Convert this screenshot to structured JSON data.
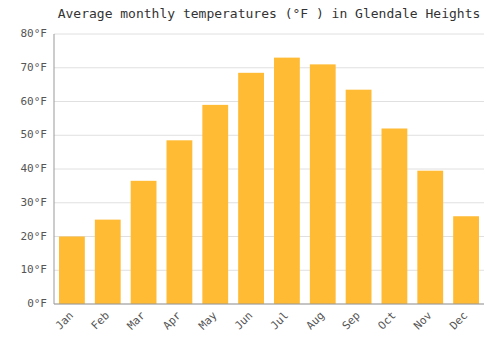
{
  "chart_data": {
    "type": "bar",
    "title": "Average monthly temperatures (°F ) in Glendale Heights",
    "categories": [
      "Jan",
      "Feb",
      "Mar",
      "Apr",
      "May",
      "Jun",
      "Jul",
      "Aug",
      "Sep",
      "Oct",
      "Nov",
      "Dec"
    ],
    "values": [
      20,
      25,
      36.5,
      48.5,
      59,
      68.5,
      73,
      71,
      63.5,
      52,
      39.5,
      26
    ],
    "color": "#FFBB33",
    "ylim": [
      0,
      80
    ],
    "yticks": [
      {
        "value": 0,
        "label": "0°F"
      },
      {
        "value": 10,
        "label": "10°F"
      },
      {
        "value": 20,
        "label": "20°F"
      },
      {
        "value": 30,
        "label": "30°F"
      },
      {
        "value": 40,
        "label": "40°F"
      },
      {
        "value": 50,
        "label": "50°F"
      },
      {
        "value": 60,
        "label": "60°F"
      },
      {
        "value": 70,
        "label": "70°F"
      },
      {
        "value": 80,
        "label": "80°F"
      }
    ],
    "grid": true
  }
}
